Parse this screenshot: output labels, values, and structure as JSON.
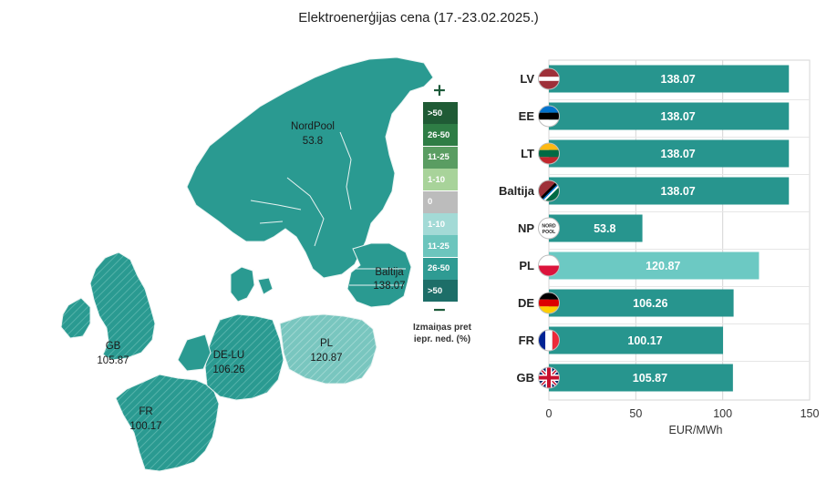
{
  "title": "Elektroenerģijas cena (17.-23.02.2025.)",
  "colors": {
    "bar": "#27958e",
    "bar_highlight": "#6cc9c3",
    "map_region": "#2a9a91",
    "map_hatched": "#79c6bf",
    "map_border": "#e8f3f2"
  },
  "map": {
    "regions": [
      {
        "id": "nordpool",
        "label": "NordPool",
        "value": "53.8"
      },
      {
        "id": "baltija",
        "label": "Baltija",
        "value": "138.07"
      },
      {
        "id": "gb",
        "label": "GB",
        "value": "105.87"
      },
      {
        "id": "de-lu",
        "label": "DE-LU",
        "value": "106.26"
      },
      {
        "id": "pl",
        "label": "PL",
        "value": "120.87"
      },
      {
        "id": "fr",
        "label": "FR",
        "value": "100.17"
      }
    ]
  },
  "legend": {
    "plus_icon": "plus-icon",
    "minus_icon": "minus-icon",
    "items": [
      {
        "label": ">50",
        "color": "#1f5b35"
      },
      {
        "label": "26-50",
        "color": "#2e7d45"
      },
      {
        "label": "11-25",
        "color": "#5a9d62"
      },
      {
        "label": "1-10",
        "color": "#a8d39a"
      },
      {
        "label": "0",
        "color": "#bcbcbc"
      },
      {
        "label": "1-10",
        "color": "#a3dad6"
      },
      {
        "label": "11-25",
        "color": "#6cc5bd"
      },
      {
        "label": "26-50",
        "color": "#2f9b93"
      },
      {
        "label": ">50",
        "color": "#1d6e68"
      }
    ],
    "caption_line1": "Izmaiņas pret",
    "caption_line2": "iepr. ned. (%)"
  },
  "chart_data": {
    "type": "bar",
    "orientation": "horizontal",
    "categories": [
      "LV",
      "EE",
      "LT",
      "Baltija",
      "NP",
      "PL",
      "DE",
      "FR",
      "GB"
    ],
    "values": [
      138.07,
      138.07,
      138.07,
      138.07,
      53.8,
      120.87,
      106.26,
      100.17,
      105.87
    ],
    "value_labels": [
      "138.07",
      "138.07",
      "138.07",
      "138.07",
      "53.8",
      "120.87",
      "106.26",
      "100.17",
      "105.87"
    ],
    "highlight": [
      "PL"
    ],
    "flags": [
      "latvia-flag-icon",
      "estonia-flag-icon",
      "lithuania-flag-icon",
      "baltic-flag-icon",
      "nordpool-logo-icon",
      "poland-flag-icon",
      "germany-flag-icon",
      "france-flag-icon",
      "uk-flag-icon"
    ],
    "nordpool_logo_text": "NORD POOL",
    "xlim": [
      0,
      150
    ],
    "xticks": [
      "0",
      "50",
      "100",
      "150"
    ],
    "xlabel": "EUR/MWh",
    "grid": true
  }
}
